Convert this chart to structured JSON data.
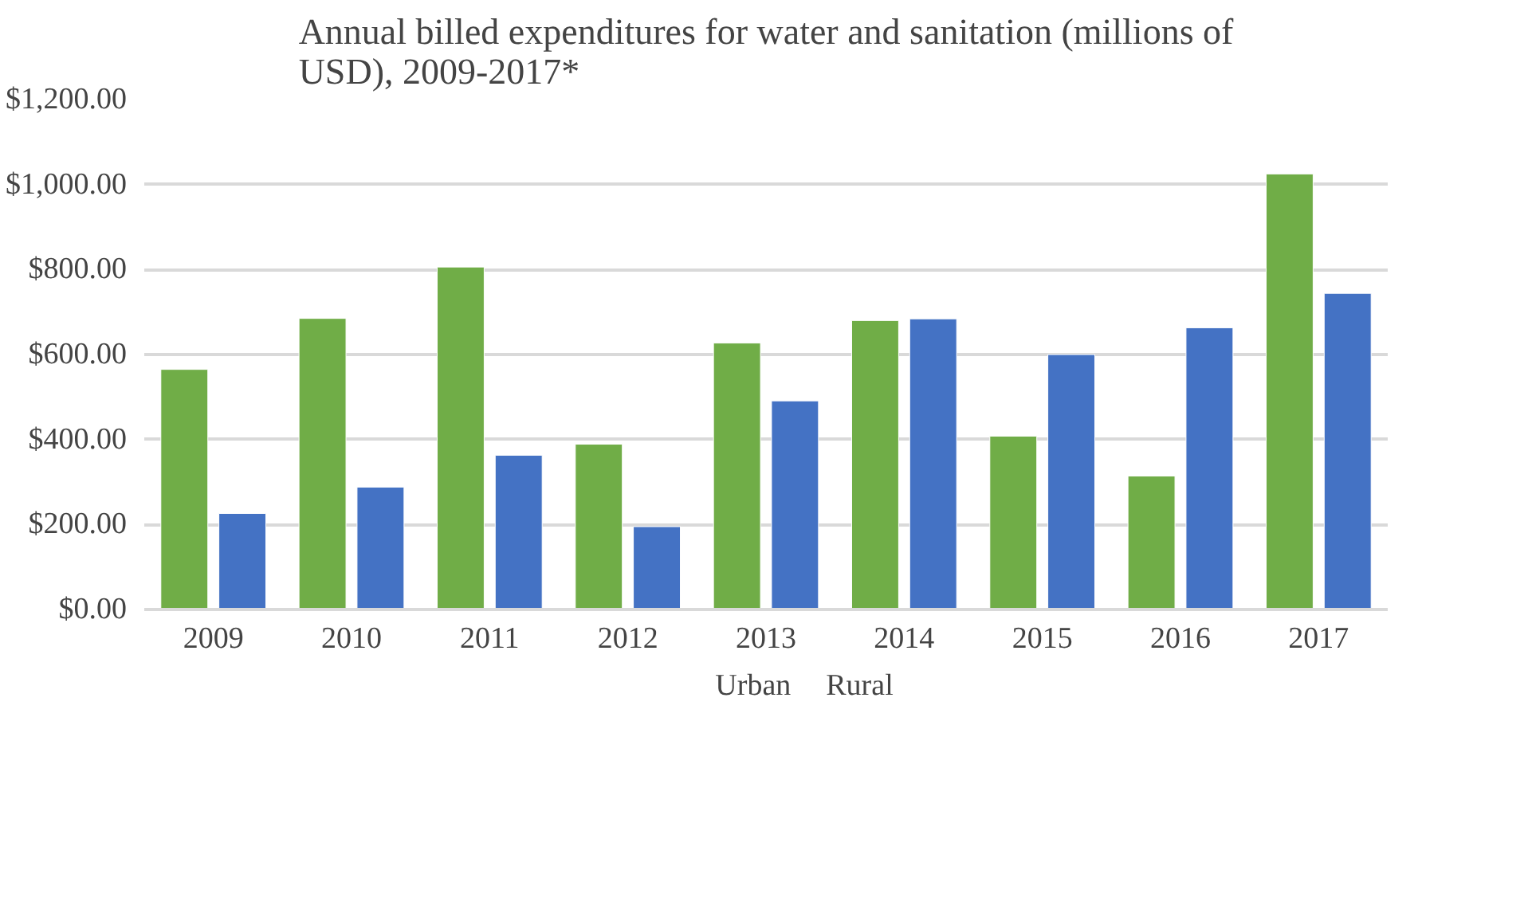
{
  "chart_data": {
    "type": "bar",
    "title": "Annual billed expenditures for water and sanitation (millions of\nUSD), 2009-2017*",
    "categories": [
      "2009",
      "2010",
      "2011",
      "2012",
      "2013",
      "2014",
      "2015",
      "2016",
      "2017"
    ],
    "series": [
      {
        "name": "Urban",
        "color": "#70ad47",
        "values": [
          565,
          685,
          806,
          389,
          627,
          680,
          408,
          314,
          1025
        ]
      },
      {
        "name": "Rural",
        "color": "#4472c4",
        "values": [
          226,
          288,
          363,
          195,
          491,
          684,
          600,
          663,
          744
        ]
      }
    ],
    "ylim": [
      0,
      1200
    ],
    "yticks": [
      {
        "value": 0,
        "label": "$0.00"
      },
      {
        "value": 200,
        "label": "$200.00"
      },
      {
        "value": 400,
        "label": "$400.00"
      },
      {
        "value": 600,
        "label": "$600.00"
      },
      {
        "value": 800,
        "label": "$800.00"
      },
      {
        "value": 1000,
        "label": "$1,000.00"
      },
      {
        "value": 1200,
        "label": "$1,200.00"
      }
    ],
    "grid": "y",
    "legend": "bottom"
  }
}
